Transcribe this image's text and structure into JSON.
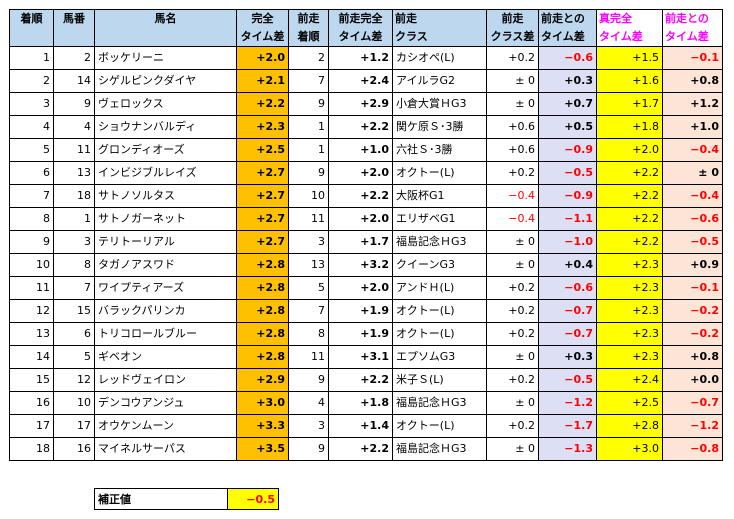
{
  "headers": [
    [
      "着順",
      ""
    ],
    [
      "馬番",
      ""
    ],
    [
      "馬名",
      ""
    ],
    [
      "完全",
      "タイム差"
    ],
    [
      "前走",
      "着順"
    ],
    [
      "前走完全",
      "タイム差"
    ],
    [
      "前走",
      "クラス"
    ],
    [
      "前走",
      "クラス差"
    ],
    [
      "前走との",
      "タイム差"
    ],
    [
      "真完全",
      "タイム差"
    ],
    [
      "前走との",
      "タイム差"
    ]
  ],
  "rows": [
    [
      "1",
      "2",
      "ボッケリーニ",
      "+2.0",
      "2",
      "+1.2",
      "カシオペ(L)",
      "+0.2",
      "−0.6",
      "+1.5",
      "−0.1"
    ],
    [
      "2",
      "14",
      "シゲルピンクダイヤ",
      "+2.1",
      "7",
      "+2.4",
      "アイルラG2",
      "± 0",
      "+0.3",
      "+1.6",
      "+0.8"
    ],
    [
      "3",
      "9",
      "ヴェロックス",
      "+2.2",
      "9",
      "+2.9",
      "小倉大賞ＨG3",
      "± 0",
      "+0.7",
      "+1.7",
      "+1.2"
    ],
    [
      "4",
      "4",
      "ショウナンバルディ",
      "+2.3",
      "1",
      "+2.2",
      "関ケ原Ｓ･3勝",
      "+0.6",
      "+0.5",
      "+1.8",
      "+1.0"
    ],
    [
      "5",
      "11",
      "グロンディオーズ",
      "+2.5",
      "1",
      "+1.0",
      "六社Ｓ･3勝",
      "+0.6",
      "−0.9",
      "+2.0",
      "−0.4"
    ],
    [
      "6",
      "13",
      "インビジブルレイズ",
      "+2.7",
      "9",
      "+2.0",
      "オクトー(L)",
      "+0.2",
      "−0.5",
      "+2.2",
      "± 0"
    ],
    [
      "7",
      "18",
      "サトノソルタス",
      "+2.7",
      "10",
      "+2.2",
      "大阪杯G1",
      "−0.4",
      "−0.9",
      "+2.2",
      "−0.4"
    ],
    [
      "8",
      "1",
      "サトノガーネット",
      "+2.7",
      "11",
      "+2.0",
      "エリザベG1",
      "−0.4",
      "−1.1",
      "+2.2",
      "−0.6"
    ],
    [
      "9",
      "3",
      "テリトーリアル",
      "+2.7",
      "3",
      "+1.7",
      "福島記念ＨG3",
      "± 0",
      "−1.0",
      "+2.2",
      "−0.5"
    ],
    [
      "10",
      "8",
      "タガノアスワド",
      "+2.8",
      "13",
      "+3.2",
      "クイーンG3",
      "± 0",
      "+0.4",
      "+2.3",
      "+0.9"
    ],
    [
      "11",
      "7",
      "ワイプティアーズ",
      "+2.8",
      "5",
      "+2.0",
      "アンドＨ(L)",
      "+0.2",
      "−0.6",
      "+2.3",
      "−0.1"
    ],
    [
      "12",
      "15",
      "バラックパリンカ",
      "+2.8",
      "7",
      "+1.9",
      "オクトー(L)",
      "+0.2",
      "−0.7",
      "+2.3",
      "−0.2"
    ],
    [
      "13",
      "6",
      "トリコロールブルー",
      "+2.8",
      "8",
      "+1.9",
      "オクトー(L)",
      "+0.2",
      "−0.7",
      "+2.3",
      "−0.2"
    ],
    [
      "14",
      "5",
      "ギベオン",
      "+2.8",
      "11",
      "+3.1",
      "エプソムG3",
      "± 0",
      "+0.3",
      "+2.3",
      "+0.8"
    ],
    [
      "15",
      "12",
      "レッドヴェイロン",
      "+2.9",
      "9",
      "+2.2",
      "米子Ｓ(L)",
      "+0.2",
      "−0.5",
      "+2.4",
      "+0.0"
    ],
    [
      "16",
      "10",
      "デンコウアンジュ",
      "+3.0",
      "4",
      "+1.8",
      "福島記念ＨG3",
      "± 0",
      "−1.2",
      "+2.5",
      "−0.7"
    ],
    [
      "17",
      "17",
      "オウケンムーン",
      "+3.3",
      "3",
      "+1.4",
      "オクトー(L)",
      "+0.2",
      "−1.7",
      "+2.8",
      "−1.2"
    ],
    [
      "18",
      "16",
      "マイネルサーパス",
      "+3.5",
      "9",
      "+2.2",
      "福島記念ＨG3",
      "± 0",
      "−1.3",
      "+3.0",
      "−0.8"
    ]
  ],
  "correction": {
    "label": "補正値",
    "value": "−0.5"
  }
}
